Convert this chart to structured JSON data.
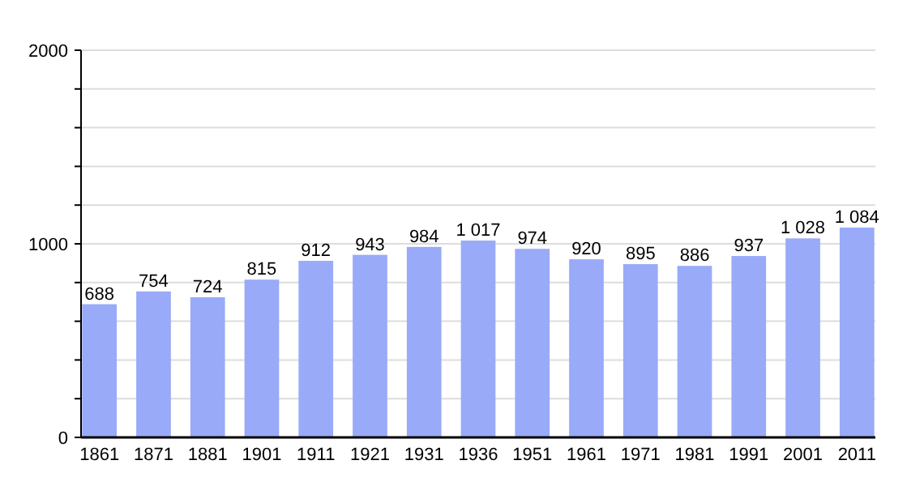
{
  "chart_data": {
    "type": "bar",
    "categories": [
      "1861",
      "1871",
      "1881",
      "1901",
      "1911",
      "1921",
      "1931",
      "1936",
      "1951",
      "1961",
      "1971",
      "1981",
      "1991",
      "2001",
      "2011"
    ],
    "values": [
      688,
      754,
      724,
      815,
      912,
      943,
      984,
      1017,
      974,
      920,
      895,
      886,
      937,
      1028,
      1084
    ],
    "value_labels": [
      "688",
      "754",
      "724",
      "815",
      "912",
      "943",
      "984",
      "1 017",
      "974",
      "920",
      "895",
      "886",
      "937",
      "1 028",
      "1 084"
    ],
    "color": "#99aaf8",
    "ylim": [
      0,
      2000
    ],
    "yticks": [
      0,
      {
        "value": 200,
        "label": null
      },
      {
        "value": 400,
        "label": null
      },
      {
        "value": 600,
        "label": null
      },
      {
        "value": 800,
        "label": null
      },
      1000,
      {
        "value": 1200,
        "label": null
      },
      {
        "value": 1400,
        "label": null
      },
      {
        "value": 1600,
        "label": null
      },
      {
        "value": 1800,
        "label": null
      },
      2000
    ],
    "grid": "y"
  }
}
